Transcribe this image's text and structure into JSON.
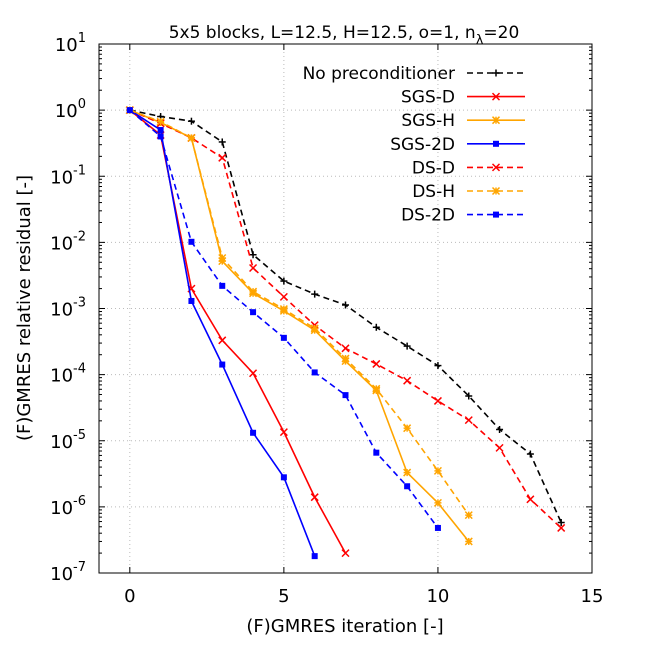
{
  "chart_data": {
    "type": "line",
    "title_main": "5x5 blocks, L=12.5, H=12.5, o=1, n",
    "title_sub": "λ",
    "title_tail": "=20",
    "xlabel": "(F)GMRES iteration [-]",
    "ylabel": "(F)GMRES relative residual [-]",
    "xlim": [
      -1,
      15
    ],
    "ylim_exp": [
      -7,
      1
    ],
    "yscale": "log",
    "grid": true,
    "legend_position": "top-right",
    "xticks": [
      0,
      5,
      10,
      15
    ],
    "xtick_labels": [
      "0",
      "5",
      "10",
      "15"
    ],
    "yticks_exp": [
      1,
      0,
      -1,
      -2,
      -3,
      -4,
      -5,
      -6,
      -7
    ],
    "ytick_base": "10",
    "ytick_exponents": [
      "1",
      "0",
      "-1",
      "-2",
      "-3",
      "-4",
      "-5",
      "-6",
      "-7"
    ],
    "series": [
      {
        "name": "No preconditioner",
        "color": "#000000",
        "dash": true,
        "marker": "plus",
        "x": [
          0,
          1,
          2,
          3,
          4,
          5,
          6,
          7,
          8,
          9,
          10,
          11,
          12,
          13,
          14
        ],
        "y": [
          1.0,
          0.8,
          0.68,
          0.33,
          0.0065,
          0.0026,
          0.00165,
          0.00113,
          0.00052,
          0.00027,
          0.000137,
          4.75e-05,
          1.48e-05,
          6.3e-06,
          5.8e-07
        ]
      },
      {
        "name": "SGS-D",
        "color": "#ff0000",
        "dash": false,
        "marker": "x",
        "x": [
          0,
          1,
          2,
          3,
          4,
          5,
          6,
          7
        ],
        "y": [
          1.0,
          0.42,
          0.002,
          0.00033,
          0.000105,
          1.35e-05,
          1.4e-06,
          2e-07
        ]
      },
      {
        "name": "SGS-H",
        "color": "#ffa500",
        "dash": false,
        "marker": "star",
        "x": [
          0,
          1,
          2,
          3,
          4,
          5,
          6,
          7,
          8,
          9,
          10,
          11
        ],
        "y": [
          1.0,
          0.65,
          0.38,
          0.0052,
          0.0017,
          0.00092,
          0.00047,
          0.00016,
          5.75e-05,
          3.3e-06,
          1.15e-06,
          3e-07
        ]
      },
      {
        "name": "SGS-2D",
        "color": "#0000ff",
        "dash": false,
        "marker": "square",
        "x": [
          0,
          1,
          2,
          3,
          4,
          5,
          6
        ],
        "y": [
          1.0,
          0.5,
          0.0013,
          0.000142,
          1.32e-05,
          2.8e-06,
          1.8e-07
        ]
      },
      {
        "name": "DS-D",
        "color": "#ff0000",
        "dash": true,
        "marker": "x",
        "x": [
          0,
          1,
          2,
          3,
          4,
          5,
          6,
          7,
          8,
          9,
          10,
          11,
          12,
          13,
          14
        ],
        "y": [
          1.0,
          0.63,
          0.38,
          0.19,
          0.0041,
          0.0015,
          0.00056,
          0.00025,
          0.000145,
          8.1e-05,
          4e-05,
          2.05e-05,
          7.8e-06,
          1.3e-06,
          4.8e-07
        ]
      },
      {
        "name": "DS-H",
        "color": "#ffa500",
        "dash": true,
        "marker": "star",
        "x": [
          0,
          1,
          2,
          3,
          4,
          5,
          6,
          7,
          8,
          9,
          10,
          11
        ],
        "y": [
          1.0,
          0.67,
          0.38,
          0.0058,
          0.0018,
          0.00098,
          0.0005,
          0.000175,
          6.1e-05,
          1.55e-05,
          3.5e-06,
          7.5e-07
        ]
      },
      {
        "name": "DS-2D",
        "color": "#0000ff",
        "dash": true,
        "marker": "square",
        "x": [
          0,
          1,
          2,
          3,
          4,
          5,
          6,
          7,
          8,
          9,
          10
        ],
        "y": [
          1.0,
          0.4,
          0.0102,
          0.0022,
          0.00088,
          0.00036,
          0.000108,
          4.9e-05,
          6.6e-06,
          2.05e-06,
          4.8e-07
        ]
      }
    ]
  }
}
